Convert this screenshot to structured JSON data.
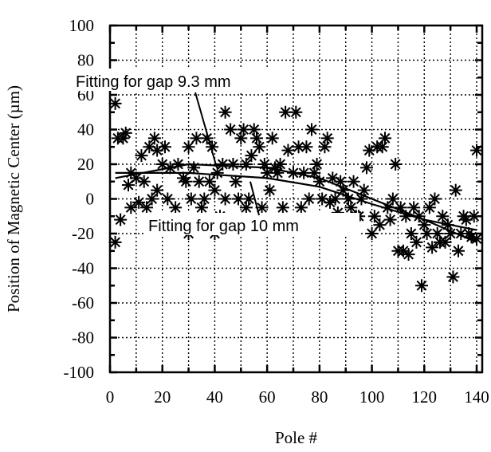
{
  "chart_data": {
    "type": "scatter",
    "title": "",
    "xlabel": "Pole #",
    "ylabel": "Position of Magnetic Center (µm)",
    "xlim": [
      0,
      140
    ],
    "ylim": [
      -100,
      100
    ],
    "x_ticks": [
      "0",
      "20",
      "40",
      "60",
      "80",
      "100",
      "120",
      "140"
    ],
    "y_ticks": [
      "100",
      "80",
      "60",
      "40",
      "20",
      "0",
      "-20",
      "-40",
      "-60",
      "-80",
      "-100"
    ],
    "grid": true,
    "marker": "asterisk",
    "points": [
      [
        2,
        55
      ],
      [
        2,
        -25
      ],
      [
        3,
        35
      ],
      [
        4,
        -12
      ],
      [
        5,
        35
      ],
      [
        6,
        38
      ],
      [
        7,
        8
      ],
      [
        8,
        -5
      ],
      [
        8,
        15
      ],
      [
        10,
        12
      ],
      [
        11,
        -2
      ],
      [
        12,
        25
      ],
      [
        13,
        10
      ],
      [
        14,
        -5
      ],
      [
        15,
        30
      ],
      [
        16,
        0
      ],
      [
        17,
        35
      ],
      [
        18,
        5
      ],
      [
        18,
        28
      ],
      [
        20,
        20
      ],
      [
        21,
        30
      ],
      [
        22,
        0
      ],
      [
        23,
        18
      ],
      [
        25,
        -5
      ],
      [
        26,
        20
      ],
      [
        28,
        12
      ],
      [
        29,
        10
      ],
      [
        30,
        -20
      ],
      [
        30,
        30
      ],
      [
        31,
        0
      ],
      [
        32,
        18
      ],
      [
        33,
        35
      ],
      [
        34,
        10
      ],
      [
        35,
        -5
      ],
      [
        36,
        0
      ],
      [
        37,
        35
      ],
      [
        38,
        10
      ],
      [
        39,
        30
      ],
      [
        40,
        -20
      ],
      [
        40,
        5
      ],
      [
        41,
        15
      ],
      [
        42,
        -10
      ],
      [
        43,
        20
      ],
      [
        44,
        0
      ],
      [
        44,
        50
      ],
      [
        45,
        -13
      ],
      [
        46,
        40
      ],
      [
        47,
        20
      ],
      [
        48,
        10
      ],
      [
        49,
        0
      ],
      [
        50,
        35
      ],
      [
        51,
        40
      ],
      [
        52,
        20
      ],
      [
        52,
        -5
      ],
      [
        53,
        0
      ],
      [
        54,
        25
      ],
      [
        55,
        40
      ],
      [
        56,
        35
      ],
      [
        57,
        30
      ],
      [
        58,
        -5
      ],
      [
        59,
        20
      ],
      [
        60,
        15
      ],
      [
        61,
        5
      ],
      [
        62,
        35
      ],
      [
        63,
        18
      ],
      [
        64,
        15
      ],
      [
        65,
        20
      ],
      [
        66,
        -5
      ],
      [
        67,
        50
      ],
      [
        68,
        28
      ],
      [
        70,
        15
      ],
      [
        71,
        50
      ],
      [
        72,
        30
      ],
      [
        73,
        -5
      ],
      [
        74,
        15
      ],
      [
        75,
        30
      ],
      [
        76,
        0
      ],
      [
        77,
        40
      ],
      [
        78,
        15
      ],
      [
        79,
        20
      ],
      [
        80,
        10
      ],
      [
        81,
        0
      ],
      [
        82,
        30
      ],
      [
        83,
        35
      ],
      [
        84,
        -2
      ],
      [
        85,
        12
      ],
      [
        86,
        0
      ],
      [
        87,
        -8
      ],
      [
        88,
        10
      ],
      [
        89,
        5
      ],
      [
        90,
        -15
      ],
      [
        91,
        0
      ],
      [
        92,
        -5
      ],
      [
        93,
        10
      ],
      [
        94,
        -10
      ],
      [
        95,
        -10
      ],
      [
        96,
        0
      ],
      [
        97,
        5
      ],
      [
        98,
        18
      ],
      [
        99,
        28
      ],
      [
        100,
        -20
      ],
      [
        101,
        -10
      ],
      [
        102,
        30
      ],
      [
        103,
        -15
      ],
      [
        104,
        30
      ],
      [
        105,
        35
      ],
      [
        106,
        -5
      ],
      [
        107,
        -12
      ],
      [
        108,
        0
      ],
      [
        109,
        20
      ],
      [
        110,
        -30
      ],
      [
        111,
        -5
      ],
      [
        112,
        -30
      ],
      [
        113,
        -10
      ],
      [
        114,
        -32
      ],
      [
        115,
        -20
      ],
      [
        116,
        -5
      ],
      [
        117,
        -25
      ],
      [
        118,
        -10
      ],
      [
        119,
        -50
      ],
      [
        120,
        -15
      ],
      [
        121,
        -20
      ],
      [
        122,
        -5
      ],
      [
        123,
        -28
      ],
      [
        124,
        0
      ],
      [
        125,
        -20
      ],
      [
        126,
        -25
      ],
      [
        127,
        -10
      ],
      [
        128,
        -25
      ],
      [
        129,
        -15
      ],
      [
        130,
        -20
      ],
      [
        131,
        -45
      ],
      [
        132,
        5
      ],
      [
        133,
        -30
      ],
      [
        134,
        -20
      ],
      [
        135,
        -10
      ],
      [
        136,
        -12
      ],
      [
        137,
        -20
      ],
      [
        138,
        -22
      ],
      [
        139,
        -10
      ],
      [
        140,
        28
      ],
      [
        140,
        -23
      ]
    ],
    "fit_lines": [
      {
        "x": [
          2,
          30,
          60,
          80,
          100,
          120,
          140
        ],
        "y": [
          12,
          20,
          18,
          12,
          0,
          -12,
          -25
        ]
      },
      {
        "x": [
          2,
          30,
          60,
          80,
          100,
          120,
          140
        ],
        "y": [
          15,
          15,
          12,
          7,
          -3,
          -12,
          -18
        ]
      }
    ],
    "annotations": [
      {
        "text": "Fitting for gap 9.3 mm"
      },
      {
        "text": "Fitting for gap 10 mm"
      }
    ]
  }
}
